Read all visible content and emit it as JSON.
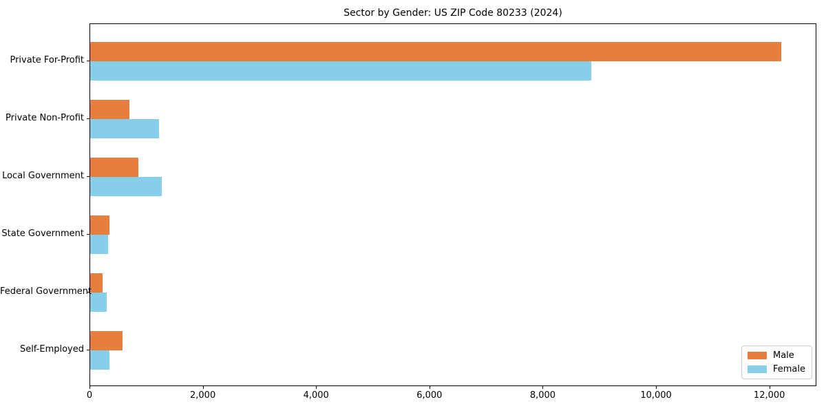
{
  "chart_data": {
    "type": "bar",
    "orientation": "horizontal",
    "title": "Sector by Gender: US ZIP Code 80233 (2024)",
    "categories": [
      "Private For-Profit",
      "Private Non-Profit",
      "Local Government",
      "State Government",
      "Federal Government",
      "Self-Employed"
    ],
    "series": [
      {
        "name": "Male",
        "color": "#e87e3d",
        "values": [
          12200,
          690,
          850,
          340,
          220,
          570
        ]
      },
      {
        "name": "Female",
        "color": "#87ceeb",
        "values": [
          8840,
          1220,
          1260,
          320,
          290,
          340
        ]
      }
    ],
    "xlabel": "",
    "ylabel": "",
    "xlim": [
      0,
      12830
    ],
    "xticks": {
      "values": [
        0,
        2000,
        4000,
        6000,
        8000,
        10000,
        12000
      ],
      "labels": [
        "0",
        "2,000",
        "4,000",
        "6,000",
        "8,000",
        "10,000",
        "12,000"
      ]
    },
    "grid": false,
    "legend": {
      "position": "lower right",
      "labels": [
        "Male",
        "Female"
      ]
    }
  }
}
